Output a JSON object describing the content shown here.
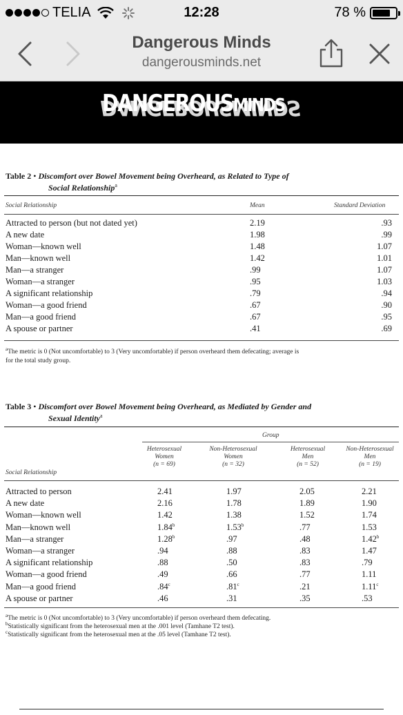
{
  "status_bar": {
    "carrier": "TELIA",
    "time": "12:28",
    "battery_percent": "78 %",
    "battery_level": 0.78,
    "signal_dots_filled": 4
  },
  "nav": {
    "title": "Dangerous Minds",
    "url": "dangerousminds.net",
    "icons": [
      "back-chevron-icon",
      "forward-chevron-icon",
      "share-icon",
      "close-icon"
    ]
  },
  "banner": {
    "logo_main": "DANGEROUS",
    "logo_small": "MINDS"
  },
  "table2": {
    "label": "Table 2",
    "title": "Discomfort over Bowel Movement being Overheard, as Related to Type of",
    "title_line2": "Social Relationship",
    "title_sup": "a",
    "col_relationship": "Social Relationship",
    "col_mean": "Mean",
    "col_sd": "Standard Deviation",
    "rows": [
      {
        "rel": "Attracted to person (but not dated yet)",
        "mean": "2.19",
        "sd": ".93"
      },
      {
        "rel": "A new date",
        "mean": "1.98",
        "sd": ".99"
      },
      {
        "rel": "Woman—known well",
        "mean": "1.48",
        "sd": "1.07"
      },
      {
        "rel": "Man—known well",
        "mean": "1.42",
        "sd": "1.01"
      },
      {
        "rel": "Man—a stranger",
        "mean": ".99",
        "sd": "1.07"
      },
      {
        "rel": "Woman—a stranger",
        "mean": ".95",
        "sd": "1.03"
      },
      {
        "rel": "A significant relationship",
        "mean": ".79",
        "sd": ".94"
      },
      {
        "rel": "Woman—a good friend",
        "mean": ".67",
        "sd": ".90"
      },
      {
        "rel": "Man—a good friend",
        "mean": ".67",
        "sd": ".95"
      },
      {
        "rel": "A spouse or partner",
        "mean": ".41",
        "sd": ".69"
      }
    ],
    "note_sup": "a",
    "note_line1": "The metric is 0 (Not uncomfortable) to 3 (Very uncomfortable) if person overheard them defecating; average is",
    "note_line2": "for the total study group."
  },
  "table3": {
    "label": "Table 3",
    "title": "Discomfort over Bowel Movement being Overheard, as Mediated by Gender and",
    "title_line2": "Sexual Identity",
    "title_sup": "a",
    "group_header": "Group",
    "col_relationship": "Social Relationship",
    "groups": [
      {
        "line1": "Heterosexual",
        "line2": "Women",
        "line3": "(n = 69)"
      },
      {
        "line1": "Non-Heterosexual",
        "line2": "Women",
        "line3": "(n = 32)"
      },
      {
        "line1": "Heterosexual",
        "line2": "Men",
        "line3": "(n = 52)"
      },
      {
        "line1": "Non-Heterosexual",
        "line2": "Men",
        "line3": "(n = 19)"
      }
    ],
    "rows": [
      {
        "rel": "Attracted to person",
        "v": [
          "2.41",
          "1.97",
          "2.05",
          "2.21"
        ],
        "s": [
          "",
          "",
          "",
          ""
        ]
      },
      {
        "rel": "A new date",
        "v": [
          "2.16",
          "1.78",
          "1.89",
          "1.90"
        ],
        "s": [
          "",
          "",
          "",
          ""
        ]
      },
      {
        "rel": "Woman—known well",
        "v": [
          "1.42",
          "1.38",
          "1.52",
          "1.74"
        ],
        "s": [
          "",
          "",
          "",
          ""
        ]
      },
      {
        "rel": "Man—known well",
        "v": [
          "1.84",
          "1.53",
          ".77",
          "1.53"
        ],
        "s": [
          "b",
          "b",
          "",
          ""
        ]
      },
      {
        "rel": "Man—a stranger",
        "v": [
          "1.28",
          ".97",
          ".48",
          "1.42"
        ],
        "s": [
          "b",
          "",
          "",
          "b"
        ]
      },
      {
        "rel": "Woman—a stranger",
        "v": [
          ".94",
          ".88",
          ".83",
          "1.47"
        ],
        "s": [
          "",
          "",
          "",
          ""
        ]
      },
      {
        "rel": "A significant relationship",
        "v": [
          ".88",
          ".50",
          ".83",
          ".79"
        ],
        "s": [
          "",
          "",
          "",
          ""
        ]
      },
      {
        "rel": "Woman—a good friend",
        "v": [
          ".49",
          ".66",
          ".77",
          "1.11"
        ],
        "s": [
          "",
          "",
          "",
          ""
        ]
      },
      {
        "rel": "Man—a good friend",
        "v": [
          ".84",
          ".81",
          ".21",
          "1.11"
        ],
        "s": [
          "c",
          "c",
          "",
          "c"
        ]
      },
      {
        "rel": "A spouse or partner",
        "v": [
          ".46",
          ".31",
          ".35",
          ".53"
        ],
        "s": [
          "",
          "",
          "",
          ""
        ]
      }
    ],
    "notes": [
      {
        "sup": "a",
        "text": "The metric is 0 (Not uncomfortable) to 3 (Very uncomfortable) if person overheard them defecating."
      },
      {
        "sup": "b",
        "text": "Statistically significant from the heterosexual men at the .001 level (Tamhane T2 test)."
      },
      {
        "sup": "c",
        "text": "Statistically significant from the heterosexual men at the .05 level (Tamhane T2 test)."
      }
    ]
  }
}
